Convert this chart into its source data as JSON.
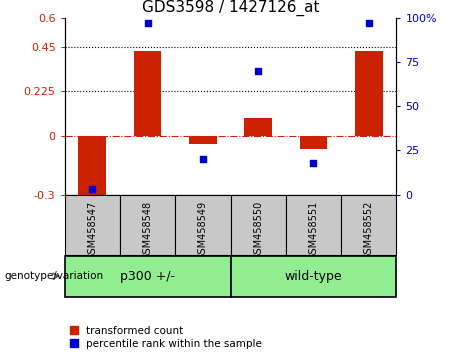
{
  "title": "GDS3598 / 1427126_at",
  "samples": [
    "GSM458547",
    "GSM458548",
    "GSM458549",
    "GSM458550",
    "GSM458551",
    "GSM458552"
  ],
  "transformed_count": [
    -0.32,
    0.43,
    -0.04,
    0.09,
    -0.07,
    0.43
  ],
  "percentile_rank": [
    3,
    97,
    20,
    70,
    18,
    97
  ],
  "ylim_left": [
    -0.3,
    0.6
  ],
  "ylim_right": [
    0,
    100
  ],
  "yticks_left": [
    -0.3,
    0,
    0.225,
    0.45,
    0.6
  ],
  "yticks_left_labels": [
    "-0.3",
    "0",
    "0.225",
    "0.45",
    "0.6"
  ],
  "yticks_right": [
    0,
    25,
    50,
    75,
    100
  ],
  "yticks_right_labels": [
    "0",
    "25",
    "50",
    "75",
    "100%"
  ],
  "hlines": [
    0.45,
    0.225
  ],
  "groups": [
    {
      "label": "p300 +/-",
      "start": 0,
      "end": 3
    },
    {
      "label": "wild-type",
      "start": 3,
      "end": 6
    }
  ],
  "group_label_prefix": "genotype/variation",
  "bar_color": "#CC2200",
  "point_color": "#0000CC",
  "zero_line_color": "#CC2200",
  "dotted_line_color": "#000000",
  "bar_width": 0.5,
  "point_size": 18,
  "legend_items": [
    {
      "label": "transformed count",
      "color": "#CC2200"
    },
    {
      "label": "percentile rank within the sample",
      "color": "#0000CC"
    }
  ],
  "bg_color": "#FFFFFF",
  "plot_bg_color": "#FFFFFF",
  "tick_label_color_left": "#CC2200",
  "tick_label_color_right": "#0000CC",
  "group_bg_color": "#90EE90",
  "sample_bg_color": "#C8C8C8",
  "title_fontsize": 11,
  "axis_fontsize": 8,
  "sample_fontsize": 7,
  "group_fontsize": 9,
  "legend_fontsize": 7.5
}
